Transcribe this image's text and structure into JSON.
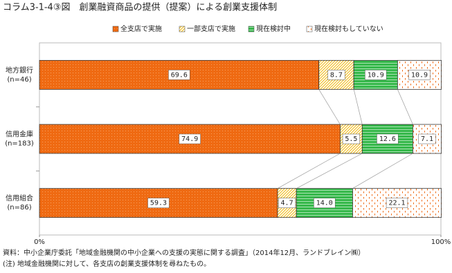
{
  "chart_data": {
    "type": "stacked-bar-horizontal",
    "title": "コラム3-1-4③図　創業融資商品の提供（提案）による創業支援体制",
    "categories": [
      "地方銀行\n(n=46)",
      "信用金庫\n(n=183)",
      "信用組合\n(n=86)"
    ],
    "series": [
      {
        "name": "全支店で実施",
        "color": "#ef6a12",
        "values": [
          69.6,
          74.9,
          59.3
        ],
        "value_labels": [
          "69.6",
          "74.9",
          "59.3"
        ]
      },
      {
        "name": "一部支店で実施",
        "color": "#f2c12e",
        "values": [
          8.7,
          5.5,
          4.7
        ],
        "value_labels": [
          "8.7",
          "5.5",
          "4.7"
        ]
      },
      {
        "name": "現在検討中",
        "color": "#35b84a",
        "values": [
          10.9,
          12.6,
          14.0
        ],
        "value_labels": [
          "10.9",
          "12.6",
          "14.0"
        ]
      },
      {
        "name": "現在検討もしていない",
        "color": "#ef6a12",
        "values": [
          10.9,
          7.1,
          22.1
        ],
        "value_labels": [
          "10.9",
          "7.1",
          "22.1"
        ]
      }
    ],
    "xlim": [
      0,
      100
    ],
    "xticks": [
      {
        "value": 0,
        "label": "0%"
      },
      {
        "value": 100,
        "label": "100%"
      }
    ],
    "notes": [
      "資料：中小企業庁委託「地域金融機関の中小企業への支援の実態に関する調査」（2014年12月、ランドブレイン㈱）",
      "(注) 地域金融機関に対して、各支店の創業支援体制を尋ねたもの。"
    ]
  }
}
